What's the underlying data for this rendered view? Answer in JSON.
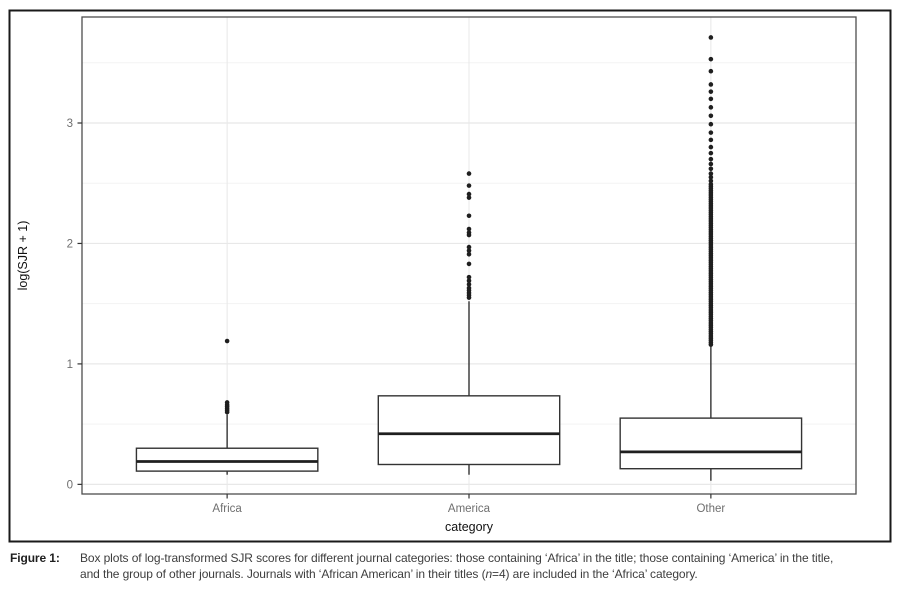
{
  "figure": {
    "frame_border_color": "#1a1a1a"
  },
  "caption": {
    "label": "Figure 1:",
    "line1": "Box plots of log-transformed SJR scores for different journal categories: those containing ‘Africa’ in the title; those containing ‘America’ in the title,",
    "line2_pre": "and the group of other journals. Journals with ‘African American’ in their titles (",
    "line2_n": "n",
    "line2_post": "=4) are included in the ‘Africa’ category."
  },
  "chart_data": {
    "type": "boxplot",
    "title": "",
    "xlabel": "category",
    "ylabel": "log(SJR + 1)",
    "categories": [
      "Africa",
      "America",
      "Other"
    ],
    "ylim": [
      -0.08,
      3.88
    ],
    "grid": true,
    "legend": "none",
    "y_ticks": [
      {
        "v": 0,
        "label": "0"
      },
      {
        "v": 1,
        "label": "1"
      },
      {
        "v": 2,
        "label": "2"
      },
      {
        "v": 3,
        "label": "3"
      }
    ],
    "y_minor_ticks": [
      0.5,
      1.5,
      2.5,
      3.5
    ],
    "boxes": [
      {
        "category": "Africa",
        "whisker_low": 0.08,
        "q1": 0.11,
        "median": 0.19,
        "q3": 0.3,
        "whisker_high": 0.58,
        "outliers": [
          0.6,
          0.615,
          0.63,
          0.645,
          0.66,
          0.68,
          1.19
        ]
      },
      {
        "category": "America",
        "whisker_low": 0.08,
        "q1": 0.165,
        "median": 0.42,
        "q3": 0.735,
        "whisker_high": 1.52,
        "outliers": [
          1.55,
          1.57,
          1.59,
          1.61,
          1.63,
          1.66,
          1.69,
          1.72,
          1.83,
          1.91,
          1.94,
          1.97,
          2.07,
          2.09,
          2.12,
          2.23,
          2.38,
          2.41,
          2.48,
          2.58
        ]
      },
      {
        "category": "Other",
        "whisker_low": 0.03,
        "q1": 0.13,
        "median": 0.27,
        "q3": 0.55,
        "whisker_high": 1.15,
        "outliers": [
          2.52,
          2.55,
          2.58,
          2.62,
          2.66,
          2.7,
          2.75,
          2.8,
          2.86,
          2.92,
          2.99,
          3.06,
          3.13,
          3.2,
          3.26,
          3.32,
          3.43,
          3.53,
          3.71
        ],
        "outlier_band": {
          "from": 1.16,
          "to": 2.5,
          "step": 0.018
        }
      }
    ],
    "colors": {
      "frame": "#1a1a1a",
      "panel_border": "#4d4d4d",
      "grid_major": "#e8e8e8",
      "grid_minor": "#f3f3f3",
      "box_stroke": "#333333",
      "median": "#1f1f1f",
      "whisker": "#333333",
      "outlier": "#1f1f1f",
      "tick": "#333333",
      "tick_label": "#6f6f6f",
      "axis_title": "#111111",
      "panel_bg": "#ffffff"
    }
  }
}
